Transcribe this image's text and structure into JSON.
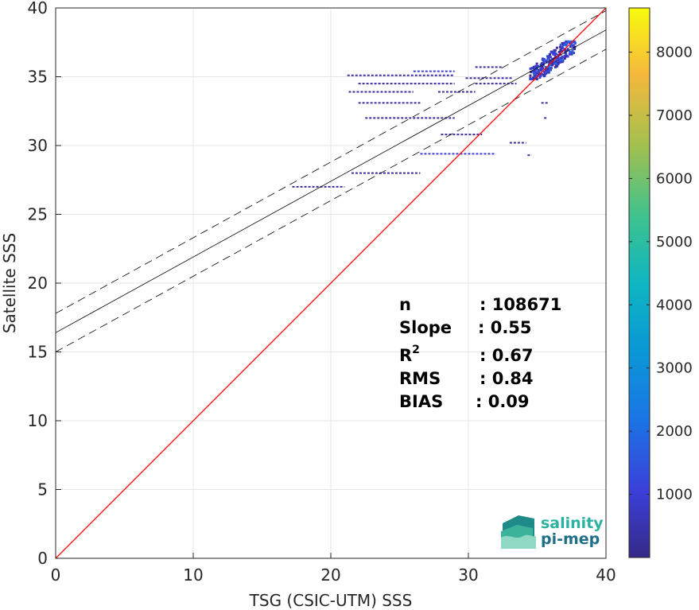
{
  "chart_data": {
    "type": "heatmap",
    "title": "",
    "xlabel": "TSG (CSIC-UTM) SSS",
    "ylabel": "Satellite SSS",
    "xlim": [
      0,
      40
    ],
    "ylim": [
      0,
      40
    ],
    "xticks": [
      "0",
      "10",
      "20",
      "30",
      "40"
    ],
    "yticks": [
      "0",
      "5",
      "10",
      "15",
      "20",
      "25",
      "30",
      "35",
      "40"
    ],
    "grid": true,
    "colorbar": {
      "range": [
        0,
        8700
      ],
      "ticks": [
        "1000",
        "2000",
        "3000",
        "4000",
        "5000",
        "6000",
        "7000",
        "8000"
      ],
      "colormap": "parula"
    },
    "lines": {
      "identity": {
        "slope": 1,
        "intercept": 0,
        "color": "#ff0000"
      },
      "regression": {
        "slope": 0.55,
        "intercept": 16.4,
        "color": "#000000"
      },
      "regression_upper": {
        "slope": 0.55,
        "intercept": 17.8,
        "style": "dashed"
      },
      "regression_lower": {
        "slope": 0.55,
        "intercept": 15.0,
        "style": "dashed"
      }
    },
    "density_segments": [
      {
        "x": [
          17.2,
          21.0
        ],
        "y": 27.0,
        "count": 300
      },
      {
        "x": [
          21.5,
          26.5
        ],
        "y": 28.0,
        "count": 600
      },
      {
        "x": [
          26.5,
          32.0
        ],
        "y": 29.4,
        "count": 700
      },
      {
        "x": [
          33.0,
          34.2
        ],
        "y": 30.2,
        "count": 400
      },
      {
        "x": [
          34.3,
          34.6
        ],
        "y": 29.3,
        "count": 400
      },
      {
        "x": [
          28.0,
          31.0
        ],
        "y": 30.8,
        "count": 200
      },
      {
        "x": [
          22.5,
          29.0
        ],
        "y": 32.0,
        "count": 500
      },
      {
        "x": [
          22.0,
          26.5
        ],
        "y": 33.1,
        "count": 400
      },
      {
        "x": [
          21.3,
          26.0
        ],
        "y": 33.9,
        "count": 400
      },
      {
        "x": [
          27.8,
          30.5
        ],
        "y": 33.9,
        "count": 300
      },
      {
        "x": [
          22.0,
          29.0
        ],
        "y": 34.5,
        "count": 500
      },
      {
        "x": [
          30.5,
          33.5
        ],
        "y": 34.5,
        "count": 500
      },
      {
        "x": [
          21.2,
          29.0
        ],
        "y": 35.1,
        "count": 500
      },
      {
        "x": [
          29.8,
          33.2
        ],
        "y": 34.9,
        "count": 400
      },
      {
        "x": [
          26.0,
          29.0
        ],
        "y": 35.4,
        "count": 800
      },
      {
        "x": [
          30.5,
          32.5
        ],
        "y": 35.7,
        "count": 500
      },
      {
        "x": [
          35.3,
          35.8
        ],
        "y": 33.1,
        "count": 400
      },
      {
        "x": [
          35.5,
          35.7
        ],
        "y": 32.0,
        "count": 200
      }
    ],
    "dense_cluster": {
      "x": [
        34.5,
        37.8
      ],
      "y": [
        34.8,
        37.6
      ],
      "count_max": 1500
    },
    "stats": [
      {
        "label": "n",
        "value": ": 108671"
      },
      {
        "label": "Slope",
        "value": ": 0.55"
      },
      {
        "label": "R",
        "sup": "2",
        "value": ": 0.67"
      },
      {
        "label": "RMS",
        "value": ": 0.84"
      },
      {
        "label": "BIAS",
        "value": ": 0.09"
      }
    ]
  },
  "logo": {
    "line1": "salinity",
    "line2": "pi-mep"
  }
}
